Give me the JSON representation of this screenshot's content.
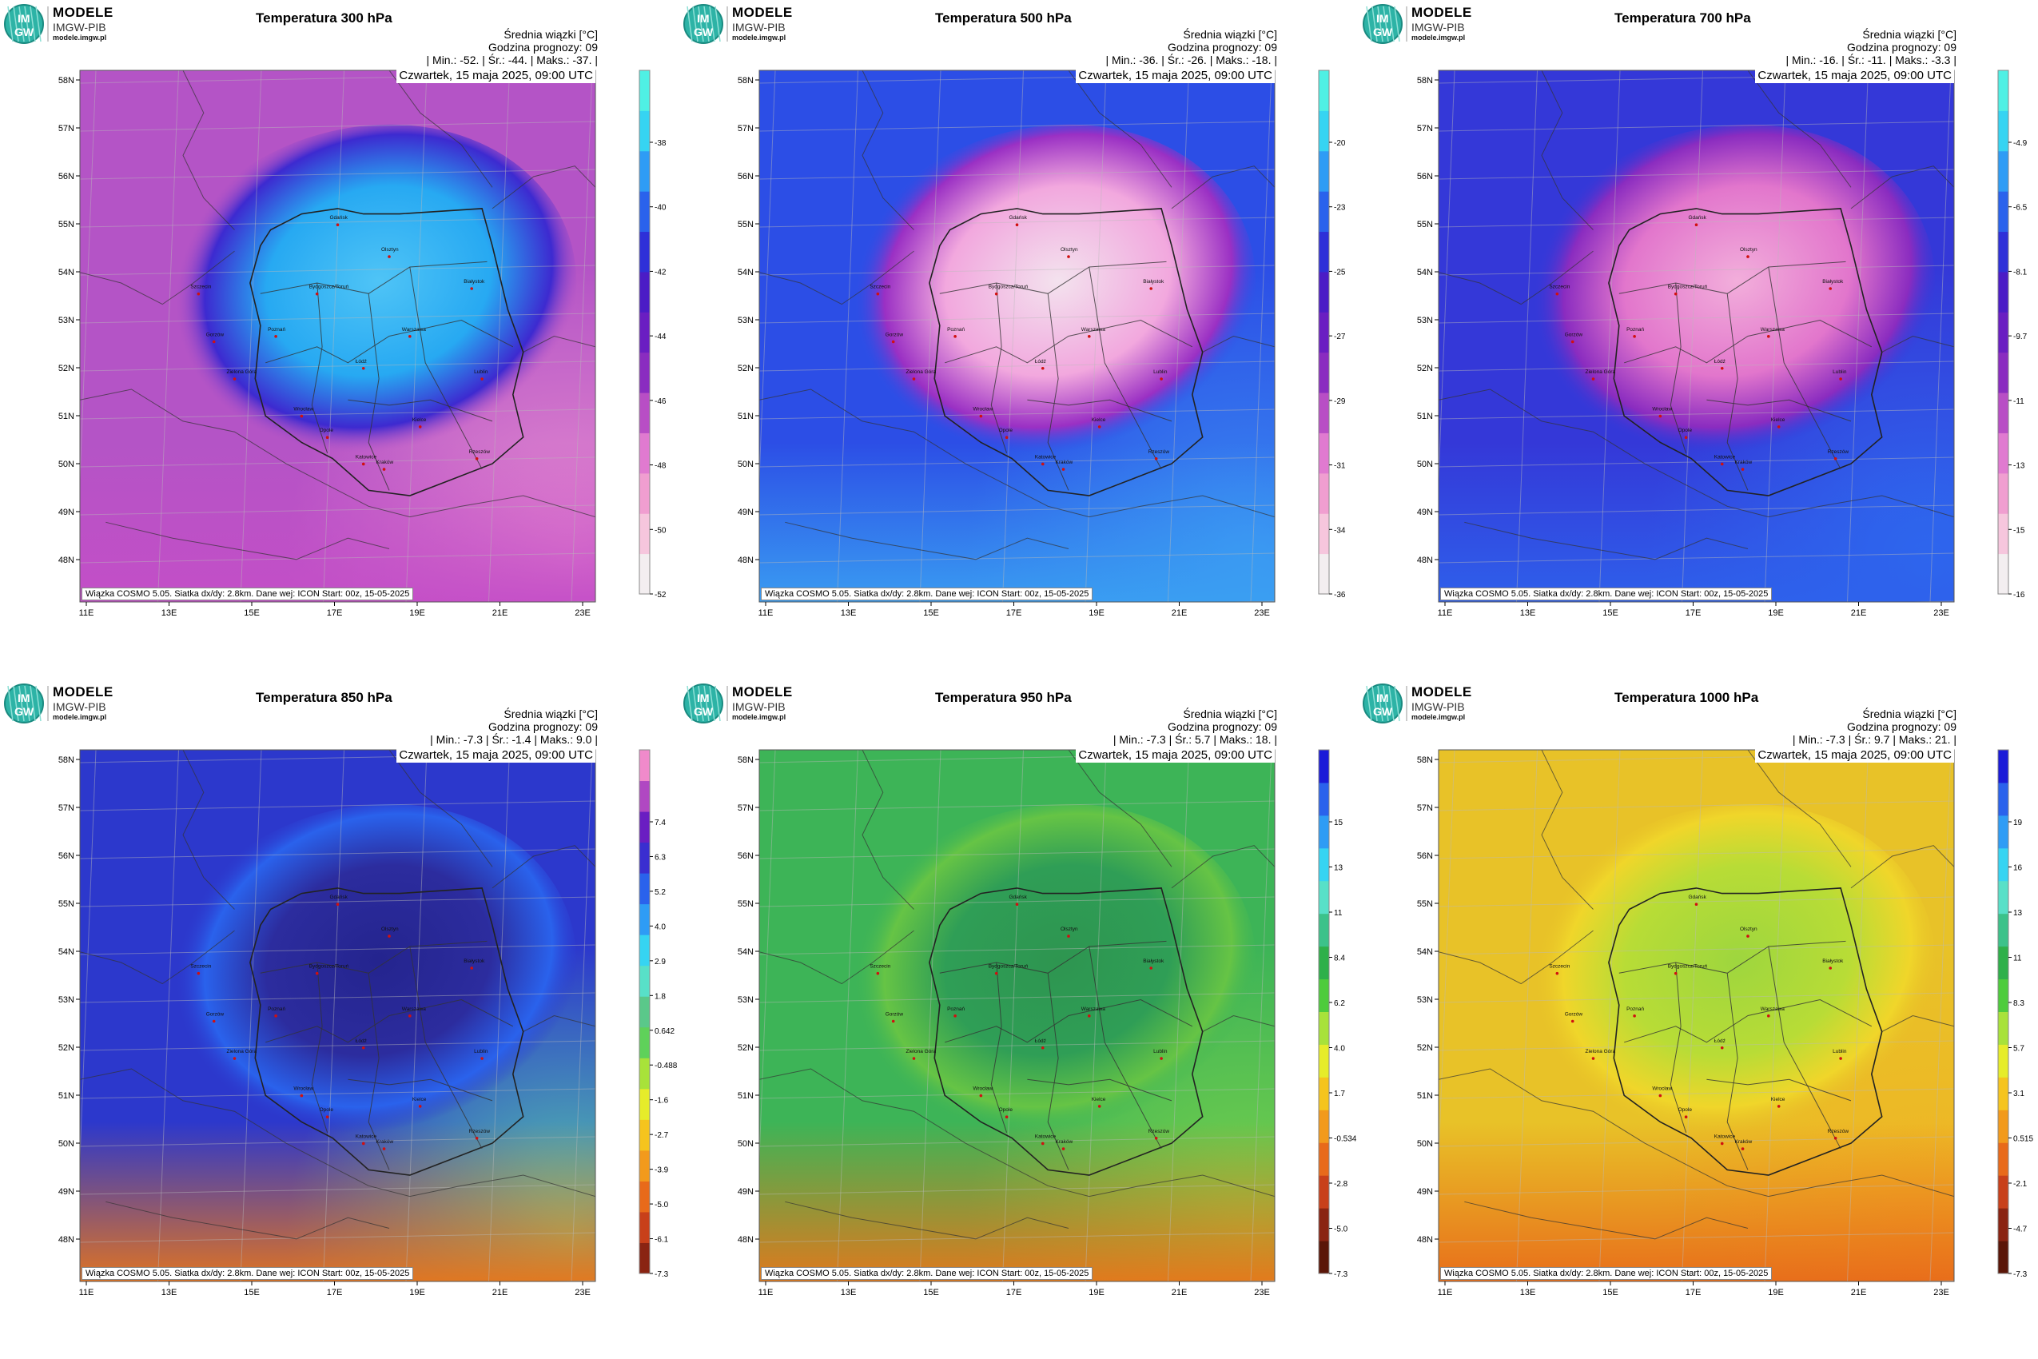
{
  "logo": {
    "brand": "MODELE",
    "org": "IMGW-PIB",
    "site": "modele.imgw.pl",
    "emblem_top": "IM",
    "emblem_bottom": "GW"
  },
  "common": {
    "mean_label": "Średnia wiązki [°C]",
    "forecast_hour": "Godzina prognozy: 09",
    "date": "Czwartek, 15 maja 2025, 09:00 UTC",
    "footer": "Wiązka COSMO 5.05. Siatka dx/dy: 2.8km. Dane wej: ICON Start: 00z, 15-05-2025",
    "lat_labels": [
      "58N",
      "57N",
      "56N",
      "55N",
      "54N",
      "53N",
      "52N",
      "51N",
      "50N",
      "49N",
      "48N"
    ],
    "lon_labels": [
      "11E",
      "13E",
      "15E",
      "17E",
      "19E",
      "21E",
      "23E"
    ],
    "cities": [
      "Gdańsk",
      "Olsztyn",
      "Białystok",
      "Bydgoszcz/Toruń",
      "Warszawa",
      "Poznań",
      "Łódź",
      "Szczecin",
      "Gorzów",
      "Zielona Góra",
      "Wrocław",
      "Opole",
      "Katowice",
      "Kraków",
      "Kielce",
      "Lublin",
      "Rzeszów"
    ]
  },
  "panels": [
    {
      "title": "Temperatura 300 hPa",
      "stats": "| Min.:    -52. | Śr.:     -44. | Maks.:     -37. |",
      "colorbar": {
        "palette": "purple-blue",
        "colors": [
          "#f3eef0",
          "#f6c6dd",
          "#f09ed0",
          "#e07ad0",
          "#b84ec5",
          "#8a2cc0",
          "#6a1ec2",
          "#4b1cc6",
          "#2e30d8",
          "#2a62ec",
          "#2e9cf5",
          "#36d4f2",
          "#4ff0e4"
        ],
        "ticks": [
          "-38",
          "-40",
          "-42",
          "-44",
          "-46",
          "-48",
          "-50",
          "-52"
        ]
      },
      "map": {
        "base": "#b454c6",
        "blob": "#27a9f2",
        "blob_inner": "#4fc4f6",
        "blob_edge": "#3d2ad0",
        "corner": "#e98fd0",
        "south": "#c44ec7"
      }
    },
    {
      "title": "Temperatura 500 hPa",
      "stats": "| Min.:    -36. | Śr.:     -26. | Maks.:     -18. |",
      "colorbar": {
        "palette": "purple-blue",
        "colors": [
          "#f3eef0",
          "#f6c6dd",
          "#f09ed0",
          "#e07ad0",
          "#b84ec5",
          "#8a2cc0",
          "#6a1ec2",
          "#4b1cc6",
          "#2e30d8",
          "#2a62ec",
          "#2e9cf5",
          "#36d4f2",
          "#4ff0e4"
        ],
        "ticks": [
          "-20",
          "-23",
          "-25",
          "-27",
          "-29",
          "-31",
          "-34",
          "-36"
        ]
      },
      "map": {
        "base": "#2c4ee6",
        "blob": "#f2a8de",
        "blob_inner": "#f3e2ee",
        "blob_edge": "#9a30c4",
        "corner": "#3a8ef2",
        "south": "#3aa0f2"
      }
    },
    {
      "title": "Temperatura 700 hPa",
      "stats": "| Min.:    -16. | Śr.:     -11. | Maks.:     -3.3 |",
      "colorbar": {
        "palette": "purple-blue",
        "colors": [
          "#f3eef0",
          "#f6c6dd",
          "#f09ed0",
          "#e07ad0",
          "#b84ec5",
          "#8a2cc0",
          "#6a1ec2",
          "#4b1cc6",
          "#2e30d8",
          "#2a62ec",
          "#2e9cf5",
          "#36d4f2",
          "#4ff0e4"
        ],
        "ticks": [
          "-4.9",
          "-6.5",
          "-8.1",
          "-9.7",
          "-11",
          "-13",
          "-15",
          "-16"
        ]
      },
      "map": {
        "base": "#3438d8",
        "blob": "#e276cc",
        "blob_inner": "#f2aedb",
        "blob_edge": "#8a2cc0",
        "corner": "#2e6cf0",
        "south": "#2e62ec"
      }
    },
    {
      "title": "Temperatura 850 hPa",
      "stats": "| Min.:    -7.3 | Śr.:     -1.4 | Maks.:     9.0 |",
      "colorbar": {
        "palette": "blue-red",
        "colors": [
          "#f08acb",
          "#b048c2",
          "#6a1ec2",
          "#3a2ed0",
          "#2a62ec",
          "#2e9cf5",
          "#36d4f2",
          "#58e0c8",
          "#5ac88a",
          "#5fd15a",
          "#a8e23a",
          "#e6ec2a",
          "#f5c41e",
          "#f29a1c",
          "#e86a1a",
          "#c8401a",
          "#8a2412"
        ],
        "ticks": [
          "7.4",
          "6.3",
          "5.2",
          "4.0",
          "2.9",
          "1.8",
          "0.642",
          "-0.488",
          "-1.6",
          "-2.7",
          "-3.9",
          "-5.0",
          "-6.1",
          "-7.3"
        ]
      },
      "map": {
        "base": "#2c38cc",
        "blob": "#2c2c9e",
        "blob_inner": "#24248e",
        "blob_edge": "#2a62ec",
        "corner": "#5ad4a6",
        "south": "#e8761a"
      }
    },
    {
      "title": "Temperatura 950 hPa",
      "stats": "| Min.:    -7.3 | Śr.:     5.7 | Maks.:     18. |",
      "colorbar": {
        "palette": "blue-red",
        "colors": [
          "#1a1ad8",
          "#2a62ec",
          "#2e9cf5",
          "#36d4f2",
          "#58e0c8",
          "#3cc28a",
          "#2eb04a",
          "#4ecc3c",
          "#a8e23a",
          "#e6ec2a",
          "#f5c41e",
          "#f29a1c",
          "#e86a1a",
          "#c8401a",
          "#8a2412",
          "#5a1608"
        ],
        "ticks": [
          "15",
          "13",
          "11",
          "8.4",
          "6.2",
          "4.0",
          "1.7",
          "-0.534",
          "-2.8",
          "-5.0",
          "-7.3"
        ]
      },
      "map": {
        "base": "#3db457",
        "blob": "#2f9e56",
        "blob_inner": "#2e9550",
        "blob_edge": "#66c445",
        "corner": "#7ed34a",
        "south": "#e8761a"
      }
    },
    {
      "title": "Temperatura 1000 hPa",
      "stats": "| Min.:    -7.3 | Śr.:     9.7 | Maks.:     21. |",
      "colorbar": {
        "palette": "blue-red",
        "colors": [
          "#1a1ad8",
          "#2a62ec",
          "#2e9cf5",
          "#36d4f2",
          "#58e0c8",
          "#3cc28a",
          "#2eb04a",
          "#4ecc3c",
          "#a8e23a",
          "#e6ec2a",
          "#f5c41e",
          "#f29a1c",
          "#e86a1a",
          "#c8401a",
          "#8a2412",
          "#5a1608"
        ],
        "ticks": [
          "19",
          "16",
          "13",
          "11",
          "8.3",
          "5.7",
          "3.1",
          "0.515",
          "-2.1",
          "-4.7",
          "-7.3"
        ]
      },
      "map": {
        "base": "#e8c228",
        "blob": "#b8dc36",
        "blob_inner": "#9ed63e",
        "blob_edge": "#f0d62a",
        "corner": "#f0b224",
        "south": "#e86a1a"
      }
    }
  ]
}
